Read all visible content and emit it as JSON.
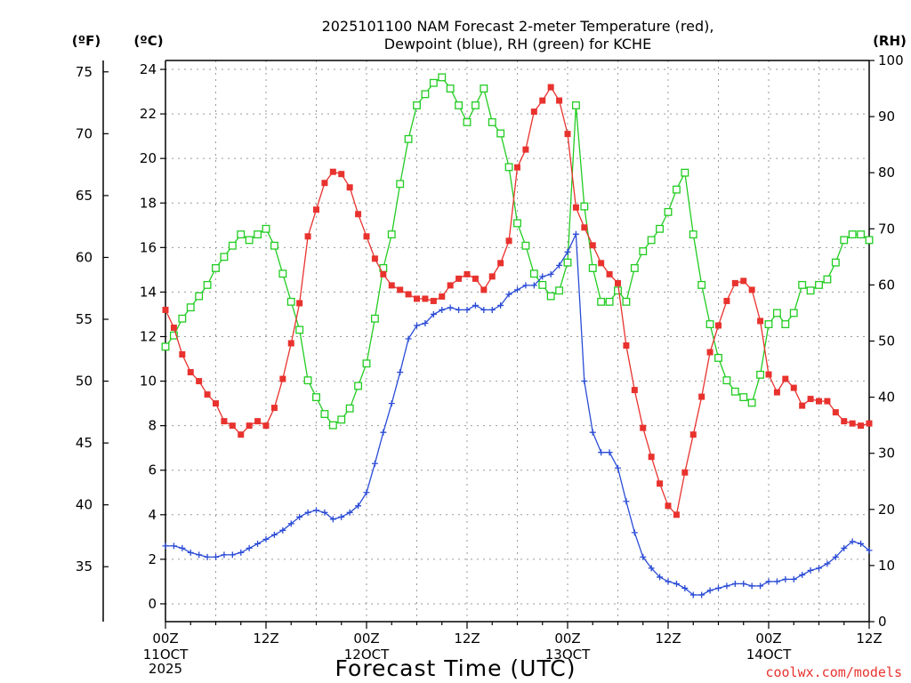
{
  "chart_data": {
    "type": "line",
    "title_lines": [
      "2025101100 NAM Forecast 2-meter Temperature (red),",
      "Dewpoint (blue), RH (green) for KCHE"
    ],
    "xlabel": "Forecast Time (UTC)",
    "credit": "coolwx.com/models",
    "units": {
      "fahrenheit": "(ºF)",
      "celsius": "(ºC)",
      "rh": "(RH)"
    },
    "x_range_hours": [
      0,
      84
    ],
    "x_ticks": [
      {
        "hour": 0,
        "label": "00Z",
        "sub1": "11OCT",
        "sub2": "2025"
      },
      {
        "hour": 12,
        "label": "12Z",
        "sub1": "",
        "sub2": ""
      },
      {
        "hour": 24,
        "label": "00Z",
        "sub1": "12OCT",
        "sub2": ""
      },
      {
        "hour": 36,
        "label": "12Z",
        "sub1": "",
        "sub2": ""
      },
      {
        "hour": 48,
        "label": "00Z",
        "sub1": "13OCT",
        "sub2": ""
      },
      {
        "hour": 60,
        "label": "12Z",
        "sub1": "",
        "sub2": ""
      },
      {
        "hour": 72,
        "label": "00Z",
        "sub1": "14OCT",
        "sub2": ""
      },
      {
        "hour": 84,
        "label": "12Z",
        "sub1": "",
        "sub2": ""
      }
    ],
    "celsius_axis": {
      "range": [
        -0.8,
        24.4
      ],
      "ticks": [
        0,
        2,
        4,
        6,
        8,
        10,
        12,
        14,
        16,
        18,
        20,
        22,
        24
      ]
    },
    "fahrenheit_axis": {
      "ticks": [
        35,
        40,
        45,
        50,
        55,
        60,
        65,
        70,
        75
      ]
    },
    "rh_axis": {
      "range": [
        0,
        100
      ],
      "ticks": [
        0,
        10,
        20,
        30,
        40,
        50,
        60,
        70,
        80,
        90,
        100
      ]
    },
    "grid": true,
    "series": [
      {
        "name": "2-meter Temperature",
        "unit": "C",
        "color": "#e8322e",
        "marker": "filled-square",
        "hours": [
          0,
          1,
          2,
          3,
          4,
          5,
          6,
          7,
          8,
          9,
          10,
          11,
          12,
          13,
          14,
          15,
          16,
          17,
          18,
          19,
          20,
          21,
          22,
          23,
          24,
          25,
          26,
          27,
          28,
          29,
          30,
          31,
          32,
          33,
          34,
          35,
          36,
          37,
          38,
          39,
          40,
          41,
          42,
          43,
          44,
          45,
          46,
          47,
          48,
          49,
          50,
          51,
          52,
          53,
          54,
          55,
          56,
          57,
          58,
          59,
          60,
          61,
          62,
          63,
          64,
          65,
          66,
          67,
          68,
          69,
          70,
          71,
          72,
          73,
          74,
          75,
          76,
          77,
          78,
          79,
          80,
          81,
          82,
          83,
          84
        ],
        "values": [
          13.2,
          12.4,
          11.2,
          10.4,
          10.0,
          9.4,
          9.0,
          8.2,
          8.0,
          7.6,
          8.0,
          8.2,
          8.0,
          8.8,
          10.1,
          11.7,
          13.5,
          16.5,
          17.7,
          18.9,
          19.4,
          19.3,
          18.7,
          17.5,
          16.5,
          15.5,
          14.8,
          14.3,
          14.1,
          13.9,
          13.7,
          13.7,
          13.6,
          13.8,
          14.3,
          14.6,
          14.8,
          14.6,
          14.1,
          14.7,
          15.3,
          16.3,
          19.6,
          20.4,
          22.1,
          22.6,
          23.2,
          22.6,
          21.1,
          17.8,
          16.9,
          16.1,
          15.3,
          14.8,
          14.4,
          11.6,
          9.6,
          7.9,
          6.6,
          5.4,
          4.4,
          4.0,
          5.9,
          7.6,
          9.3,
          11.3,
          12.5,
          13.6,
          14.4,
          14.5,
          14.1,
          12.7,
          10.3,
          9.5,
          10.1,
          9.7,
          8.9,
          9.2,
          9.1,
          9.1,
          8.6,
          8.2,
          8.1,
          8.0,
          8.1
        ]
      },
      {
        "name": "Dewpoint",
        "unit": "C",
        "color": "#2a4bd6",
        "marker": "plus",
        "hours": [
          0,
          1,
          2,
          3,
          4,
          5,
          6,
          7,
          8,
          9,
          10,
          11,
          12,
          13,
          14,
          15,
          16,
          17,
          18,
          19,
          20,
          21,
          22,
          23,
          24,
          25,
          26,
          27,
          28,
          29,
          30,
          31,
          32,
          33,
          34,
          35,
          36,
          37,
          38,
          39,
          40,
          41,
          42,
          43,
          44,
          45,
          46,
          47,
          48,
          49,
          50,
          51,
          52,
          53,
          54,
          55,
          56,
          57,
          58,
          59,
          60,
          61,
          62,
          63,
          64,
          65,
          66,
          67,
          68,
          69,
          70,
          71,
          72,
          73,
          74,
          75,
          76,
          77,
          78,
          79,
          80,
          81,
          82,
          83,
          84
        ],
        "values": [
          2.6,
          2.6,
          2.5,
          2.3,
          2.2,
          2.1,
          2.1,
          2.2,
          2.2,
          2.3,
          2.5,
          2.7,
          2.9,
          3.1,
          3.3,
          3.6,
          3.9,
          4.1,
          4.2,
          4.1,
          3.8,
          3.9,
          4.1,
          4.4,
          5.0,
          6.3,
          7.7,
          9.0,
          10.4,
          11.9,
          12.5,
          12.6,
          13.0,
          13.2,
          13.3,
          13.2,
          13.2,
          13.4,
          13.2,
          13.2,
          13.4,
          13.9,
          14.1,
          14.3,
          14.3,
          14.7,
          14.8,
          15.2,
          15.8,
          16.6,
          10.0,
          7.7,
          6.8,
          6.8,
          6.1,
          4.6,
          3.2,
          2.1,
          1.6,
          1.2,
          1.0,
          0.9,
          0.7,
          0.4,
          0.4,
          0.6,
          0.7,
          0.8,
          0.9,
          0.9,
          0.8,
          0.8,
          1.0,
          1.0,
          1.1,
          1.1,
          1.3,
          1.5,
          1.6,
          1.8,
          2.1,
          2.5,
          2.8,
          2.7,
          2.4
        ]
      },
      {
        "name": "RH",
        "unit": "%",
        "color": "#22cc22",
        "marker": "open-square",
        "hours": [
          0,
          1,
          2,
          3,
          4,
          5,
          6,
          7,
          8,
          9,
          10,
          11,
          12,
          13,
          14,
          15,
          16,
          17,
          18,
          19,
          20,
          21,
          22,
          23,
          24,
          25,
          26,
          27,
          28,
          29,
          30,
          31,
          32,
          33,
          34,
          35,
          36,
          37,
          38,
          39,
          40,
          41,
          42,
          43,
          44,
          45,
          46,
          47,
          48,
          49,
          50,
          51,
          52,
          53,
          54,
          55,
          56,
          57,
          58,
          59,
          60,
          61,
          62,
          63,
          64,
          65,
          66,
          67,
          68,
          69,
          70,
          71,
          72,
          73,
          74,
          75,
          76,
          77,
          78,
          79,
          80,
          81,
          82,
          83,
          84
        ],
        "values": [
          49,
          51,
          54,
          56,
          58,
          60,
          63,
          65,
          67,
          69,
          68,
          69,
          70,
          67,
          62,
          57,
          52,
          43,
          40,
          37,
          35,
          36,
          38,
          42,
          46,
          54,
          63,
          69,
          78,
          86,
          92,
          94,
          96,
          97,
          95,
          92,
          89,
          92,
          95,
          89,
          87,
          81,
          71,
          67,
          62,
          60,
          58,
          59,
          64,
          92,
          74,
          63,
          57,
          57,
          59,
          57,
          63,
          66,
          68,
          70,
          73,
          77,
          80,
          69,
          60,
          53,
          47,
          43,
          41,
          40,
          39,
          44,
          53,
          55,
          53,
          55,
          60,
          59,
          60,
          61,
          64,
          68,
          69,
          69,
          68
        ]
      }
    ]
  }
}
